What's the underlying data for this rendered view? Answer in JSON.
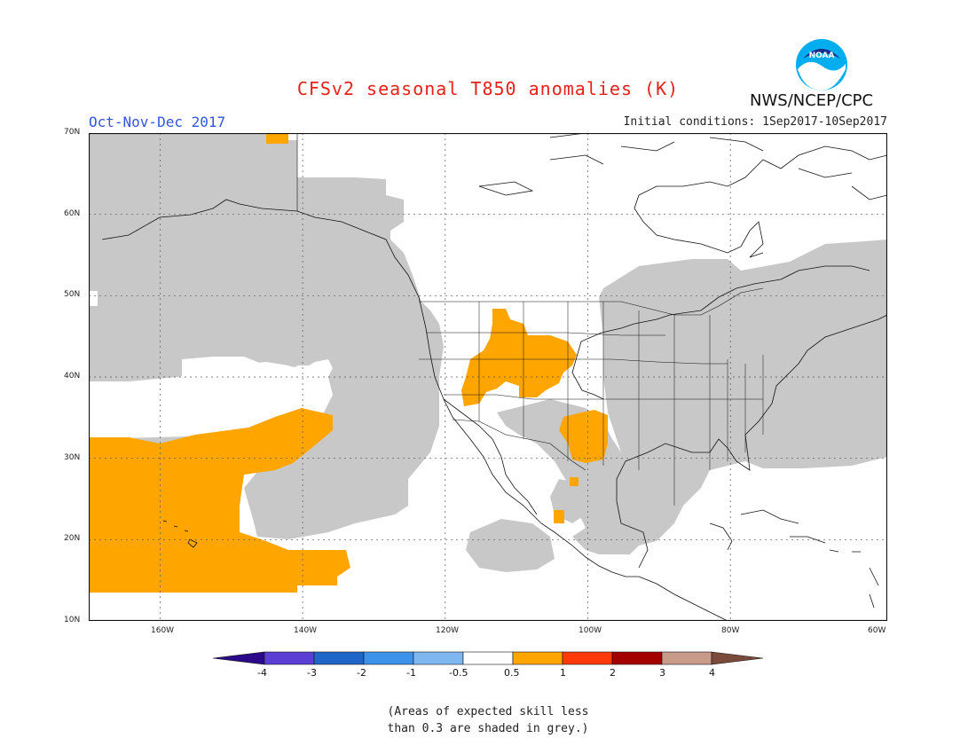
{
  "header": {
    "title": "CFSv2 seasonal T850 anomalies (K)",
    "period": "Oct-Nov-Dec 2017",
    "initial_conditions": "Initial conditions: 1Sep2017-10Sep2017",
    "agency": "NWS/NCEP/CPC",
    "logo_text": "NOAA",
    "logo_color": "#00aeef"
  },
  "map": {
    "lon_range": [
      -172,
      -60
    ],
    "lat_range": [
      10,
      70
    ],
    "lat_labels": [
      "70N",
      "60N",
      "50N",
      "40N",
      "30N",
      "20N",
      "10N"
    ],
    "lon_labels": [
      "160W",
      "140W",
      "120W",
      "100W",
      "80W",
      "60W"
    ],
    "skill_shade_color": "#c8c8c8",
    "warm_anomaly_color": "#ffa500"
  },
  "legend": {
    "labels": [
      "-4",
      "-3",
      "-2",
      "-1",
      "-0.5",
      "0.5",
      "1",
      "2",
      "3",
      "4"
    ],
    "colors": [
      "#2a0a8a",
      "#5b3fd4",
      "#1e66c8",
      "#3d93ea",
      "#7fb8f0",
      "#ffffff",
      "#ffa500",
      "#ff3a0a",
      "#a50000",
      "#c79a8a",
      "#7a4a3a"
    ]
  },
  "note": {
    "line1": "(Areas of expected skill less",
    "line2": "than 0.3 are shaded in grey.)"
  }
}
